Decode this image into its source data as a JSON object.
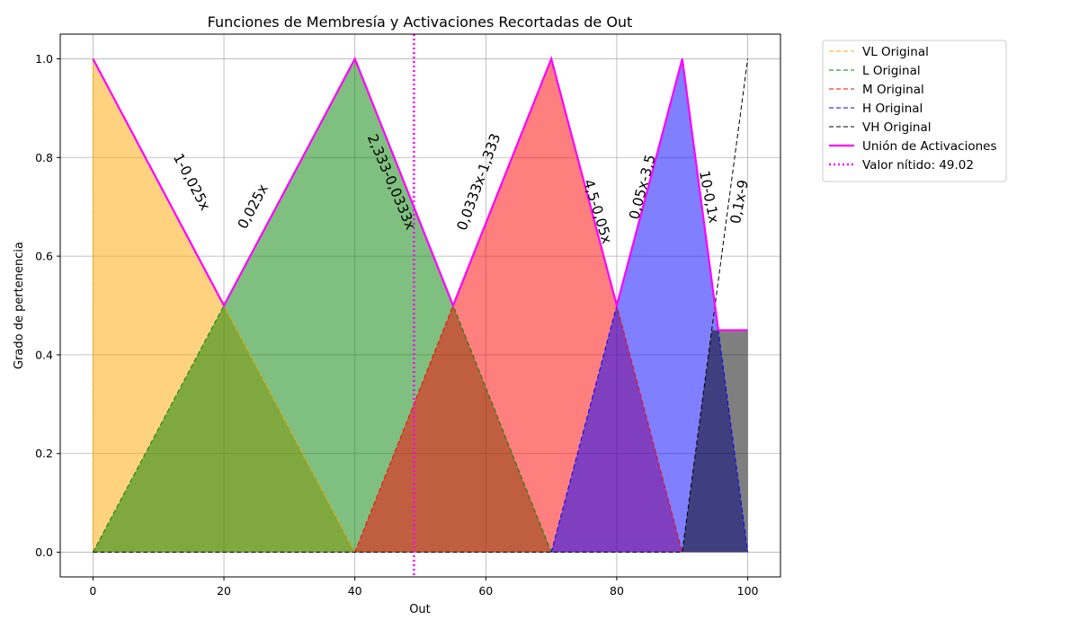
{
  "chart_data": {
    "type": "area",
    "title": "Funciones de Membresía y Activaciones Recortadas de Out",
    "xlabel": "Out",
    "ylabel": "Grado de pertenencia",
    "xlim": [
      -5,
      105
    ],
    "ylim": [
      -0.05,
      1.05
    ],
    "x_ticks": [
      0,
      20,
      40,
      60,
      80,
      100
    ],
    "y_ticks": [
      0.0,
      0.2,
      0.4,
      0.6,
      0.8,
      1.0
    ],
    "x_tick_labels": [
      "0",
      "20",
      "40",
      "60",
      "80",
      "100"
    ],
    "y_tick_labels": [
      "0.0",
      "0.2",
      "0.4",
      "0.6",
      "0.8",
      "1.0"
    ],
    "grid": true,
    "legend_position": "outside-right-top",
    "series": [
      {
        "name": "VL Original",
        "color": "#ffa500",
        "style": "dashed",
        "x": [
          0,
          0,
          40
        ],
        "y": [
          0,
          1,
          0
        ],
        "fill": true,
        "fill_color": "#ffa500"
      },
      {
        "name": "L Original",
        "color": "#008000",
        "style": "dashed",
        "x": [
          0,
          40,
          70
        ],
        "y": [
          0,
          1,
          0
        ],
        "fill": true,
        "fill_color": "#008000"
      },
      {
        "name": "M Original",
        "color": "#ff0000",
        "style": "dashed",
        "x": [
          40,
          70,
          90
        ],
        "y": [
          0,
          1,
          0
        ],
        "fill": true,
        "fill_color": "#ff0000"
      },
      {
        "name": "H Original",
        "color": "#0000ff",
        "style": "dashed",
        "x": [
          70,
          90,
          100
        ],
        "y": [
          0,
          1,
          0
        ],
        "fill": true,
        "fill_color": "#0000ff"
      },
      {
        "name": "VH Original",
        "color": "#000000",
        "style": "dashed",
        "x": [
          0,
          90,
          100
        ],
        "y": [
          0,
          0,
          1
        ],
        "fill": true,
        "fill_color": "#000000",
        "fill_x": [
          90,
          94.5,
          100,
          100
        ],
        "fill_y": [
          0,
          0.45,
          0.45,
          0
        ]
      },
      {
        "name": "Unión de Activaciones",
        "color": "#ff00ff",
        "style": "solid",
        "x": [
          0,
          20,
          40,
          55,
          70,
          80,
          90,
          95.5,
          100
        ],
        "y": [
          1,
          0.5,
          1,
          0.5,
          1,
          0.5,
          1,
          0.45,
          0.45
        ]
      },
      {
        "name": "Valor nítido: 49.02",
        "color": "#ff00ff",
        "style": "dotted",
        "vertical_x": 49.02
      }
    ],
    "annotations": [
      {
        "text": "1-0,025x",
        "x": 15,
        "y": 0.75,
        "rotation": 62
      },
      {
        "text": "0,025x",
        "x": 24.5,
        "y": 0.7,
        "rotation": -62
      },
      {
        "text": "2,333-0,0333x",
        "x": 45.5,
        "y": 0.75,
        "rotation": 67
      },
      {
        "text": "0,0333x-1,333",
        "x": 59,
        "y": 0.75,
        "rotation": -70
      },
      {
        "text": "4,5-0,05x",
        "x": 77,
        "y": 0.69,
        "rotation": 73
      },
      {
        "text": "0,05x-3,5",
        "x": 84,
        "y": 0.74,
        "rotation": -75
      },
      {
        "text": "10-0,1x",
        "x": 94,
        "y": 0.72,
        "rotation": 79
      },
      {
        "text": "0,1x-9",
        "x": 98.8,
        "y": 0.71,
        "rotation": -79
      }
    ]
  }
}
